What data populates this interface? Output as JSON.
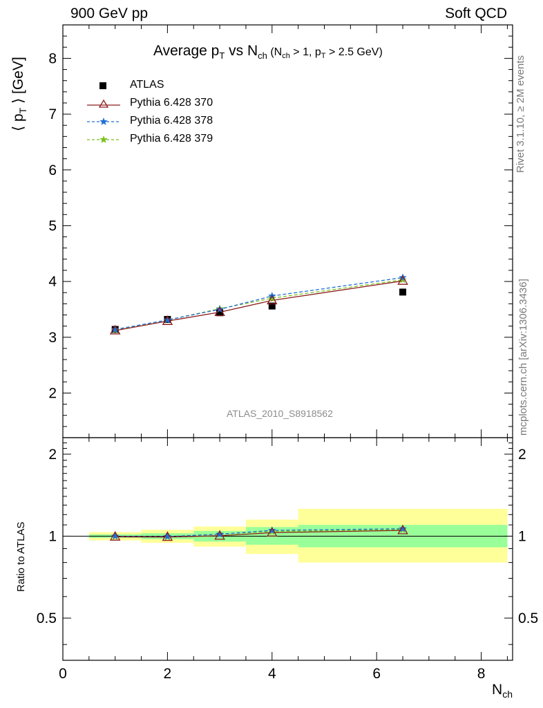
{
  "header": {
    "left": "900 GeV pp",
    "right": "Soft QCD"
  },
  "side": {
    "rivet": "Rivet 3.1.10, ≥ 2M events",
    "mcplots": "mcplots.cern.ch [arXiv:1306.3436]"
  },
  "analysis_id": "ATLAS_2010_S8918562",
  "colors": {
    "atlas": "#000000",
    "p370": "#8b1a1a",
    "p378": "#1f6fd6",
    "p379": "#7cc21f",
    "band_inner": "#99ff99",
    "band_outer": "#ffff99"
  },
  "chart_data": [
    {
      "type": "line",
      "title": "Average p_T vs N_ch (N_ch > 1, p_T > 2.5 GeV)",
      "title_parts": {
        "main": "Average p",
        "main_sub": "T",
        "vs": " vs N",
        "vs_sub": "ch",
        "cond_open": " (N",
        "cond_sub1": "ch",
        "cond_mid": " > 1, p",
        "cond_sub2": "T",
        "cond_end": " > 2.5 GeV)"
      },
      "ylabel": "⟨ p_T ⟩ [GeV]",
      "ylabel_parts": {
        "open": "⟨ p",
        "sub": "T",
        "close": " ⟩ [GeV]"
      },
      "xlim": [
        0,
        8.6
      ],
      "ylim": [
        1.2,
        8.6
      ],
      "xticks": [
        0,
        2,
        4,
        6,
        8
      ],
      "yticks": [
        2,
        3,
        4,
        5,
        6,
        7,
        8
      ],
      "legend_position": "top-left",
      "series": [
        {
          "name": "ATLAS",
          "marker": "square",
          "x": [
            1,
            2,
            3,
            4,
            6.5
          ],
          "y": [
            3.14,
            3.32,
            3.44,
            3.56,
            3.81
          ]
        },
        {
          "name": "Pythia 6.428 370",
          "marker": "triangle",
          "line": "solid",
          "x": [
            1,
            2,
            3,
            4,
            6.5
          ],
          "y": [
            3.12,
            3.29,
            3.45,
            3.66,
            4.01
          ]
        },
        {
          "name": "Pythia 6.428 378",
          "marker": "star",
          "line": "dashed",
          "x": [
            1,
            2,
            3,
            4,
            6.5
          ],
          "y": [
            3.14,
            3.31,
            3.5,
            3.74,
            4.07
          ]
        },
        {
          "name": "Pythia 6.428 379",
          "marker": "star",
          "line": "dashed",
          "x": [
            1,
            2,
            3,
            4,
            6.5
          ],
          "y": [
            3.13,
            3.31,
            3.51,
            3.7,
            4.03
          ]
        }
      ]
    },
    {
      "type": "line",
      "ylabel": "Ratio to ATLAS",
      "xlabel": "N_ch",
      "xlabel_parts": {
        "main": "N",
        "sub": "ch"
      },
      "xlim": [
        0,
        8.6
      ],
      "ylim": [
        0.35,
        2.3
      ],
      "yscale": "log",
      "yticks": [
        0.5,
        1,
        2
      ],
      "ytick_labels": [
        "0.5",
        "1",
        "2"
      ],
      "bands": [
        {
          "x0": 0.5,
          "x1": 1.5,
          "inner": [
            0.985,
            1.015
          ],
          "outer": [
            0.965,
            1.035
          ]
        },
        {
          "x0": 1.5,
          "x1": 2.5,
          "inner": [
            0.975,
            1.025
          ],
          "outer": [
            0.945,
            1.055
          ]
        },
        {
          "x0": 2.5,
          "x1": 3.5,
          "inner": [
            0.955,
            1.045
          ],
          "outer": [
            0.915,
            1.085
          ]
        },
        {
          "x0": 3.5,
          "x1": 4.5,
          "inner": [
            0.93,
            1.08
          ],
          "outer": [
            0.86,
            1.15
          ]
        },
        {
          "x0": 4.5,
          "x1": 8.5,
          "inner": [
            0.91,
            1.1
          ],
          "outer": [
            0.8,
            1.26
          ]
        }
      ],
      "series": [
        {
          "name": "Pythia 6.428 370",
          "x": [
            1,
            2,
            3,
            4,
            6.5
          ],
          "y": [
            0.995,
            0.993,
            1.003,
            1.03,
            1.05
          ]
        },
        {
          "name": "Pythia 6.428 378",
          "x": [
            1,
            2,
            3,
            4,
            6.5
          ],
          "y": [
            1.0,
            0.997,
            1.016,
            1.05,
            1.065
          ]
        },
        {
          "name": "Pythia 6.428 379",
          "x": [
            1,
            2,
            3,
            4,
            6.5
          ],
          "y": [
            0.998,
            0.996,
            1.018,
            1.04,
            1.058
          ]
        }
      ]
    }
  ]
}
